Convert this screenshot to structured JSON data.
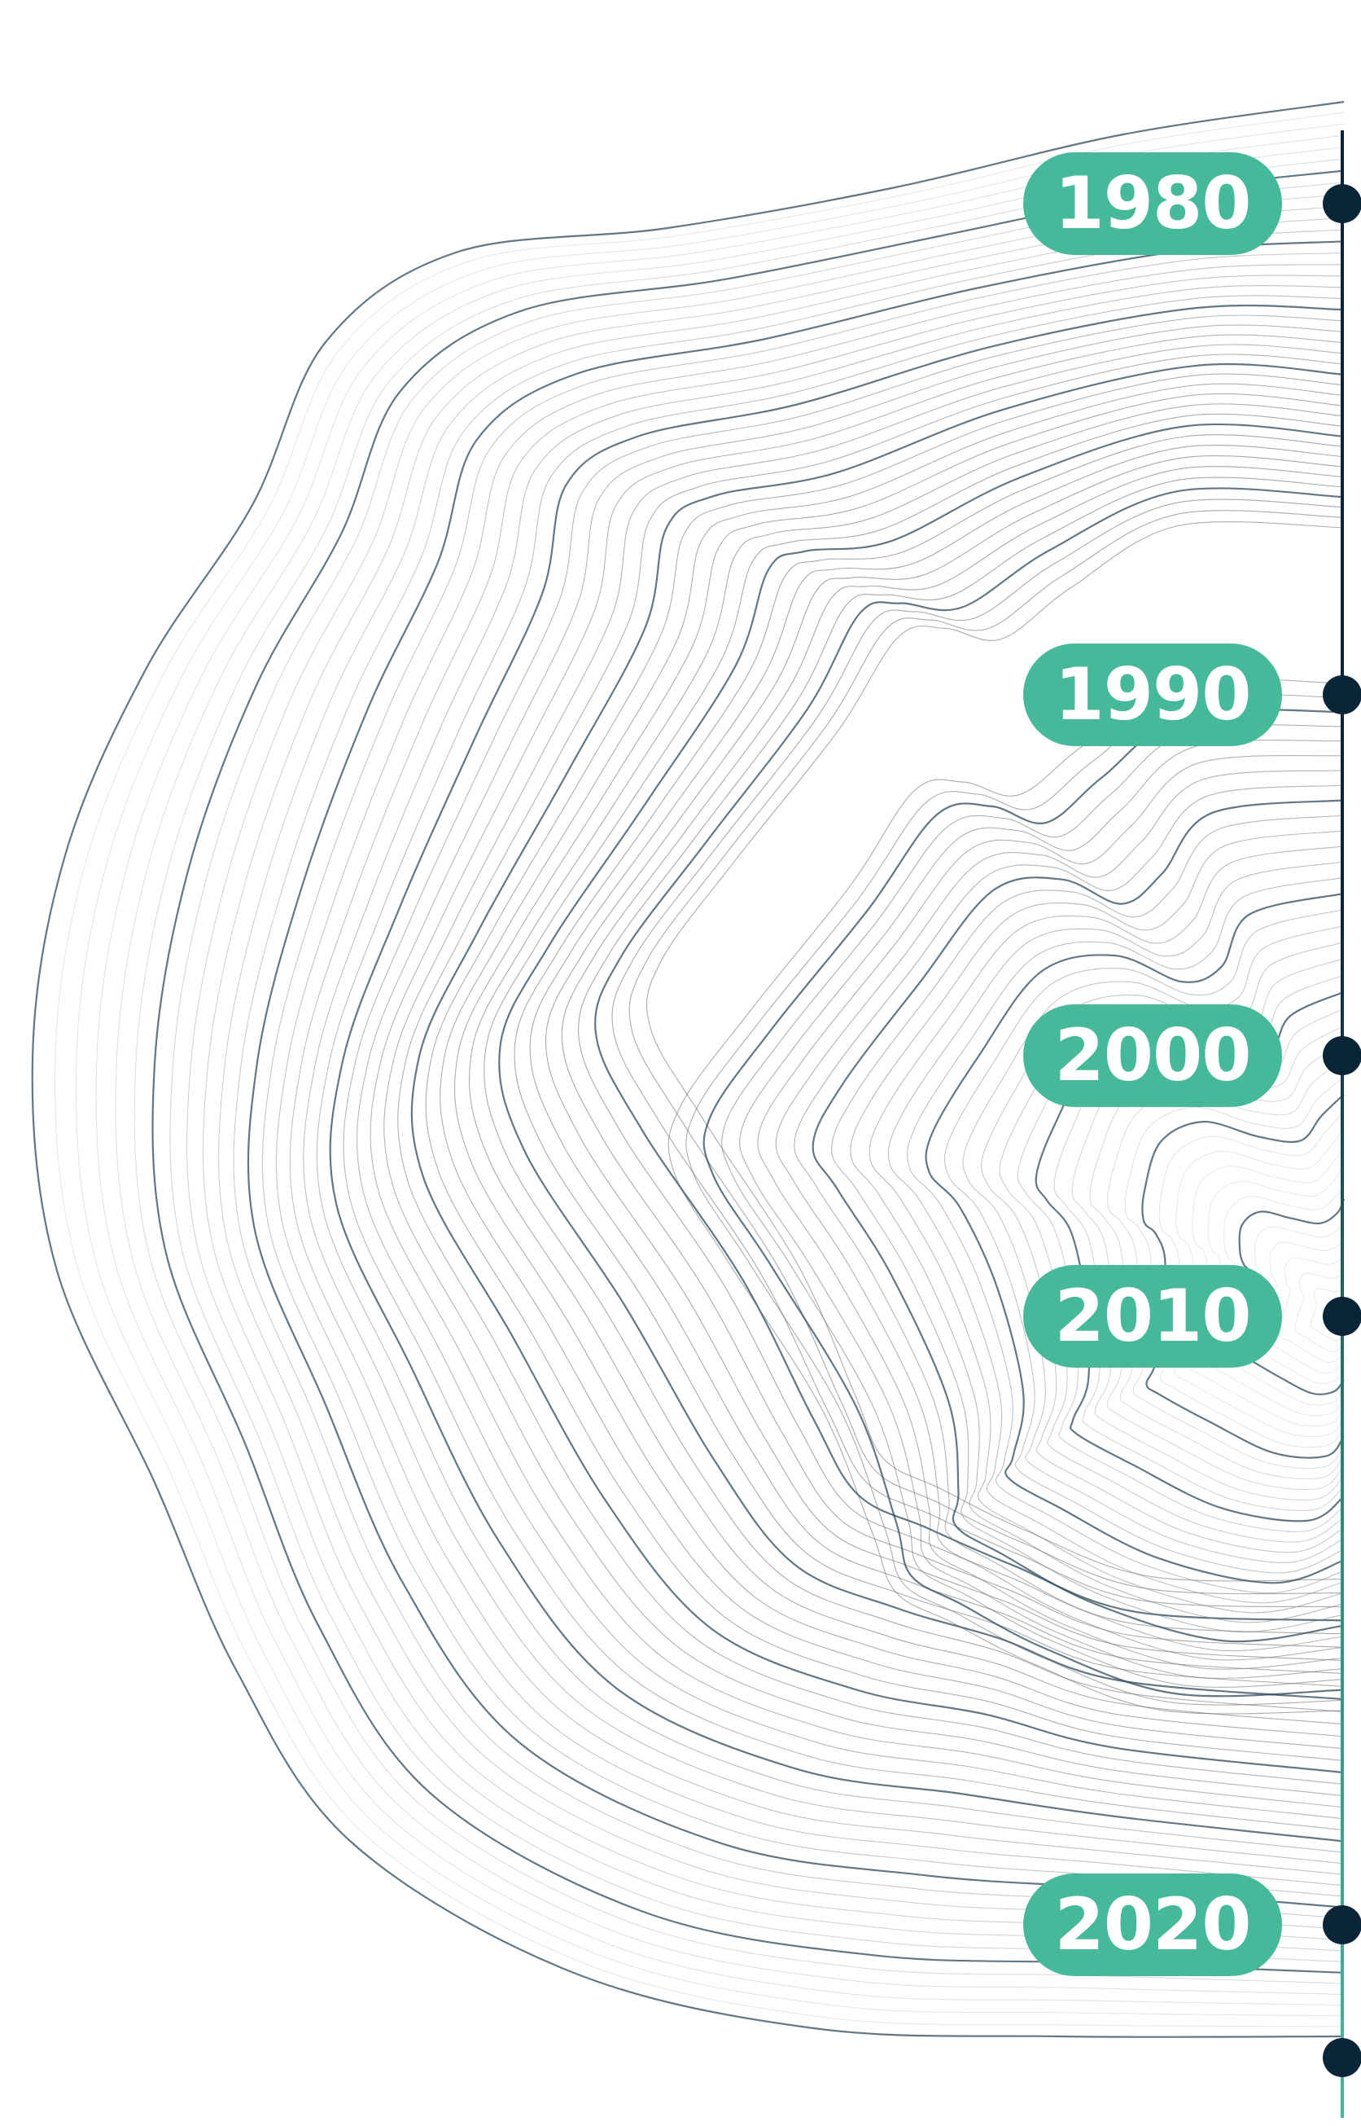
{
  "timeline": {
    "line_colors": {
      "top": "#0b2538",
      "bottom": "#45b99a"
    },
    "milestones": [
      {
        "label": "1980"
      },
      {
        "label": "1990"
      },
      {
        "label": "2000"
      },
      {
        "label": "2010"
      },
      {
        "label": "2020"
      },
      {
        "label": ""
      }
    ]
  },
  "colors": {
    "pill_fill": "#45b99a",
    "pill_text": "#ffffff",
    "node_fill": "#0b2538",
    "contour_dark": "#2e4a5e",
    "contour_light": "#b7c1c9"
  }
}
